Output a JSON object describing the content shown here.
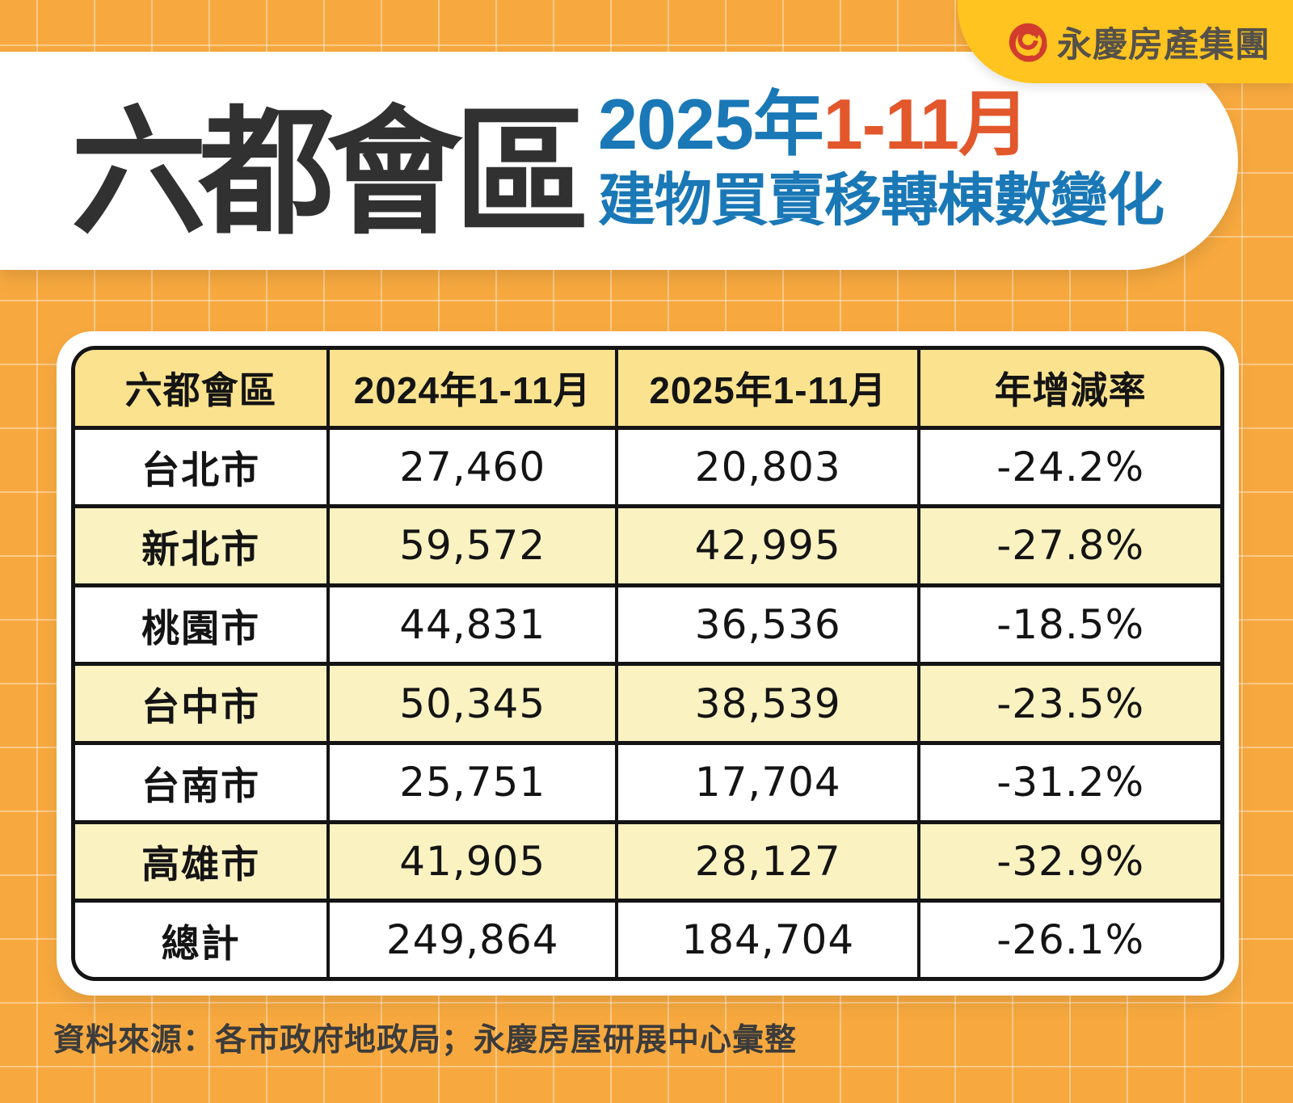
{
  "logo": {
    "brand": "永慶房產集團",
    "icon": "yungching-swirl-icon",
    "plate_color": "#FFC41F",
    "mark_color": "#D23B2E",
    "text_color": "#55514A"
  },
  "header": {
    "title": "六都會區",
    "subtitle_year": "2025年",
    "subtitle_months": "1-11月",
    "subtitle_line2": "建物買賣移轉棟數變化",
    "title_color": "#313131",
    "blue": "#1A78B6",
    "orange": "#E2572B"
  },
  "table": {
    "columns": [
      "六都會區",
      "2024年1-11月",
      "2025年1-11月",
      "年增減率"
    ],
    "rows": [
      [
        "台北市",
        "27,460",
        "20,803",
        "-24.2%"
      ],
      [
        "新北市",
        "59,572",
        "42,995",
        "-27.8%"
      ],
      [
        "桃園市",
        "44,831",
        "36,536",
        "-18.5%"
      ],
      [
        "台中市",
        "50,345",
        "38,539",
        "-23.5%"
      ],
      [
        "台南市",
        "25,751",
        "17,704",
        "-31.2%"
      ],
      [
        "高雄市",
        "41,905",
        "28,127",
        "-32.9%"
      ],
      [
        "總計",
        "249,864",
        "184,704",
        "-26.1%"
      ]
    ],
    "header_bg": "#FBE28E",
    "stripe_bg": "#FAF2C1"
  },
  "source": "資料來源：各市政府地政局；永慶房屋研展中心彙整",
  "background": {
    "color": "#F7A93F",
    "grid_line": "rgba(255,255,255,0.38)"
  },
  "chart_data": {
    "type": "table",
    "title": "六都會區 2025年1-11月 建物買賣移轉棟數變化",
    "columns": [
      "六都會區",
      "2024年1-11月",
      "2025年1-11月",
      "年增減率"
    ],
    "rows": [
      {
        "region": "台北市",
        "y2024": 27460,
        "y2025": 20803,
        "yoy_pct": -24.2
      },
      {
        "region": "新北市",
        "y2024": 59572,
        "y2025": 42995,
        "yoy_pct": -27.8
      },
      {
        "region": "桃園市",
        "y2024": 44831,
        "y2025": 36536,
        "yoy_pct": -18.5
      },
      {
        "region": "台中市",
        "y2024": 50345,
        "y2025": 38539,
        "yoy_pct": -23.5
      },
      {
        "region": "台南市",
        "y2024": 25751,
        "y2025": 17704,
        "yoy_pct": -31.2
      },
      {
        "region": "高雄市",
        "y2024": 41905,
        "y2025": 28127,
        "yoy_pct": -32.9
      },
      {
        "region": "總計",
        "y2024": 249864,
        "y2025": 184704,
        "yoy_pct": -26.1
      }
    ],
    "source_note": "資料來源：各市政府地政局；永慶房屋研展中心彙整"
  }
}
